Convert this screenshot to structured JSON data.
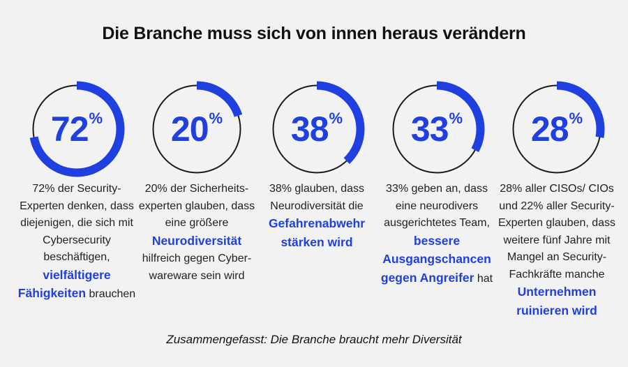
{
  "title": "Die Branche muss sich von innen heraus verändern",
  "accent_color": "#1f3fe0",
  "stats": [
    {
      "value": 72,
      "number": "72",
      "percent_sign": "%",
      "text_before": "72% der Security-Experten denken, dass diejenigen, die sich mit Cybersecurity beschäftigen,",
      "highlight": "vielfältigere Fähigkeiten",
      "text_after": "brauchen"
    },
    {
      "value": 20,
      "number": "20",
      "percent_sign": "%",
      "text_before": "20% der Sicherheits-experten glauben, dass eine größere",
      "highlight": "Neurodiversität",
      "text_after": "hilfreich gegen Cyber-wareware sein wird"
    },
    {
      "value": 38,
      "number": "38",
      "percent_sign": "%",
      "text_before": "38% glauben, dass Neurodiversität die",
      "highlight": "Gefahrenabwehr stärken wird",
      "text_after": ""
    },
    {
      "value": 33,
      "number": "33",
      "percent_sign": "%",
      "text_before": "33% geben an, dass eine neurodivers ausgerichtetes Team,",
      "highlight": "bessere Ausgangschancen gegen Angreifer",
      "text_after": "hat"
    },
    {
      "value": 28,
      "number": "28",
      "percent_sign": "%",
      "text_before": "28% aller CISOs/ CIOs und 22% aller Security-Experten glauben, dass weitere fünf Jahre mit Mangel an Security-Fachkräfte manche",
      "highlight": "Unternehmen ruinieren wird",
      "text_after": ""
    }
  ],
  "footer": "Zusammengefasst: Die Branche braucht mehr Diversität"
}
